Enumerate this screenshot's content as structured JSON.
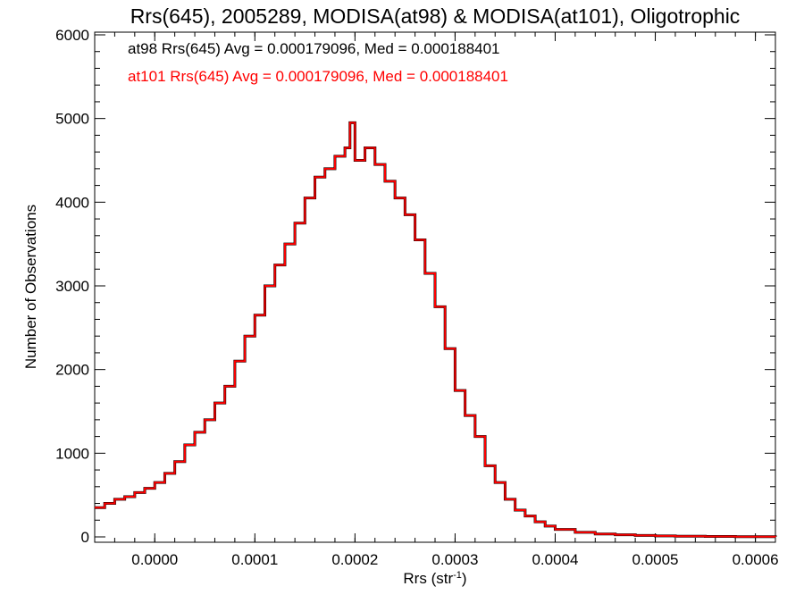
{
  "chart_data": {
    "type": "histogram",
    "title": "Rrs(645), 2005289, MODISA(at98) & MODISA(at101), Oligotrophic",
    "xlabel": "Rrs (str",
    "xlabel_sup": "-1",
    "xlabel_close": ")",
    "ylabel": "Number of Observations",
    "xlim": [
      -6e-05,
      0.00062
    ],
    "ylim": [
      0,
      6000
    ],
    "xticks": [
      0,
      0.0001,
      0.0002,
      0.0003,
      0.0004,
      0.0005,
      0.0006
    ],
    "xtick_labels": [
      "0.0000",
      "0.0001",
      "0.0002",
      "0.0003",
      "0.0004",
      "0.0005",
      "0.0006"
    ],
    "yticks": [
      0,
      1000,
      2000,
      3000,
      4000,
      5000,
      6000
    ],
    "ytick_labels": [
      "0",
      "1000",
      "2000",
      "3000",
      "4000",
      "5000",
      "6000"
    ],
    "grid": false,
    "legend_position": "top-left",
    "annotations": [
      {
        "text": "at98 Rrs(645) Avg = 0.000179096, Med = 0.000188401",
        "color": "#000000"
      },
      {
        "text": "at101 Rrs(645) Avg = 0.000179096, Med = 0.000188401",
        "color": "#ff0000"
      }
    ],
    "series": [
      {
        "name": "at98",
        "color": "#000000",
        "x": [
          -6e-05,
          -5e-05,
          -4e-05,
          -3e-05,
          -2e-05,
          -1e-05,
          0,
          1e-05,
          2e-05,
          3e-05,
          4e-05,
          5e-05,
          6e-05,
          7e-05,
          8e-05,
          9e-05,
          0.0001,
          0.00011,
          0.00012,
          0.00013,
          0.00014,
          0.00015,
          0.00016,
          0.00017,
          0.00018,
          0.00019,
          0.000195,
          0.0002,
          0.00021,
          0.00022,
          0.00023,
          0.00024,
          0.00025,
          0.00026,
          0.00027,
          0.00028,
          0.00029,
          0.0003,
          0.00031,
          0.00032,
          0.00033,
          0.00034,
          0.00035,
          0.00036,
          0.00037,
          0.00038,
          0.00039,
          0.0004,
          0.00042,
          0.00044,
          0.00046,
          0.00048,
          0.0005,
          0.00052,
          0.00055,
          0.00058,
          0.00062
        ],
        "y": [
          350,
          400,
          450,
          480,
          530,
          580,
          650,
          760,
          900,
          1100,
          1250,
          1400,
          1600,
          1800,
          2100,
          2400,
          2650,
          3000,
          3250,
          3500,
          3750,
          4050,
          4300,
          4400,
          4550,
          4650,
          4950,
          4500,
          4650,
          4450,
          4250,
          4050,
          3850,
          3550,
          3150,
          2750,
          2250,
          1750,
          1450,
          1200,
          850,
          650,
          450,
          320,
          250,
          180,
          130,
          90,
          55,
          35,
          25,
          18,
          12,
          8,
          5,
          3,
          2
        ]
      },
      {
        "name": "at101",
        "color": "#ff0000",
        "x": [
          -6e-05,
          -5e-05,
          -4e-05,
          -3e-05,
          -2e-05,
          -1e-05,
          0,
          1e-05,
          2e-05,
          3e-05,
          4e-05,
          5e-05,
          6e-05,
          7e-05,
          8e-05,
          9e-05,
          0.0001,
          0.00011,
          0.00012,
          0.00013,
          0.00014,
          0.00015,
          0.00016,
          0.00017,
          0.00018,
          0.00019,
          0.000195,
          0.0002,
          0.00021,
          0.00022,
          0.00023,
          0.00024,
          0.00025,
          0.00026,
          0.00027,
          0.00028,
          0.00029,
          0.0003,
          0.00031,
          0.00032,
          0.00033,
          0.00034,
          0.00035,
          0.00036,
          0.00037,
          0.00038,
          0.00039,
          0.0004,
          0.00042,
          0.00044,
          0.00046,
          0.00048,
          0.0005,
          0.00052,
          0.00055,
          0.00058,
          0.00062
        ],
        "y": [
          350,
          400,
          450,
          480,
          530,
          580,
          650,
          760,
          900,
          1100,
          1250,
          1400,
          1600,
          1800,
          2100,
          2400,
          2650,
          3000,
          3250,
          3500,
          3750,
          4050,
          4300,
          4400,
          4550,
          4650,
          4950,
          4500,
          4650,
          4450,
          4250,
          4050,
          3850,
          3550,
          3150,
          2750,
          2250,
          1750,
          1450,
          1200,
          850,
          650,
          450,
          320,
          250,
          180,
          130,
          90,
          55,
          35,
          25,
          18,
          12,
          8,
          5,
          3,
          2
        ]
      }
    ]
  }
}
